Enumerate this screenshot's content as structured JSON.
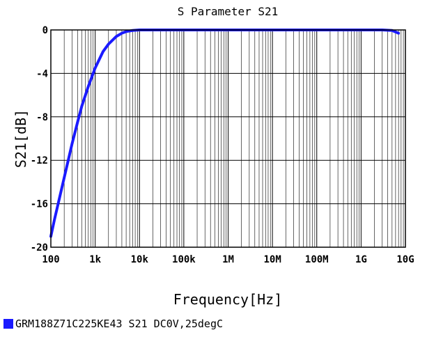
{
  "chart_data": {
    "type": "line",
    "title": "S Parameter S21",
    "xlabel": "Frequency[Hz]",
    "ylabel": "S21[dB]",
    "x_scale": "log",
    "xlim": [
      100,
      10000000000
    ],
    "ylim": [
      -20,
      0
    ],
    "x_ticks": [
      {
        "value": 100,
        "label": "100"
      },
      {
        "value": 1000,
        "label": "1k"
      },
      {
        "value": 10000,
        "label": "10k"
      },
      {
        "value": 100000,
        "label": "100k"
      },
      {
        "value": 1000000,
        "label": "1M"
      },
      {
        "value": 10000000,
        "label": "10M"
      },
      {
        "value": 100000000,
        "label": "100M"
      },
      {
        "value": 1000000000,
        "label": "1G"
      },
      {
        "value": 10000000000,
        "label": "10G"
      }
    ],
    "y_ticks": [
      {
        "value": 0,
        "label": "0"
      },
      {
        "value": -4,
        "label": "-4"
      },
      {
        "value": -8,
        "label": "-8"
      },
      {
        "value": -12,
        "label": "-12"
      },
      {
        "value": -16,
        "label": "-16"
      },
      {
        "value": -20,
        "label": "-20"
      }
    ],
    "grid": true,
    "legend_position": "bottom-left",
    "series": [
      {
        "name": "GRM188Z71C225KE43 S21 DC0V,25degC",
        "color": "#1a1aff",
        "x": [
          100,
          120,
          150,
          200,
          250,
          300,
          400,
          500,
          700,
          1000,
          1500,
          2000,
          3000,
          4000,
          5000,
          7000,
          10000,
          20000,
          100000,
          1000000,
          10000000,
          100000000,
          1000000000,
          3000000000,
          5000000000,
          7000000000
        ],
        "y": [
          -19.0,
          -17.5,
          -15.8,
          -13.6,
          -11.9,
          -10.5,
          -8.5,
          -7.0,
          -5.2,
          -3.5,
          -2.0,
          -1.3,
          -0.6,
          -0.3,
          -0.15,
          -0.05,
          0,
          0,
          0,
          0,
          0,
          0,
          0,
          0,
          -0.05,
          -0.3
        ]
      }
    ]
  }
}
